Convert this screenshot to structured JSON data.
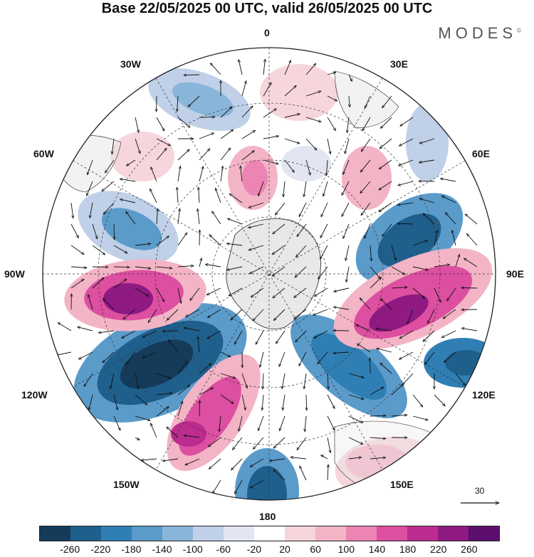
{
  "title": "Base 22/05/2025 00 UTC, valid 26/05/2025 00 UTC",
  "brand": "MODES",
  "brand_mark": "©",
  "lon_labels": {
    "top": "0",
    "top_right": "30E",
    "right_upper": "60E",
    "right": "90E",
    "right_lower": "120E",
    "bottom_right": "150E",
    "bottom": "180",
    "bottom_left": "150W",
    "left_lower": "120W",
    "left": "90W",
    "left_upper": "60W",
    "top_left": "30W"
  },
  "vector_reference": "30",
  "colorbar": {
    "ticks": [
      "-260",
      "-220",
      "-180",
      "-140",
      "-100",
      "-60",
      "-20",
      "20",
      "60",
      "100",
      "140",
      "180",
      "220",
      "260"
    ],
    "colors": [
      "#143c5a",
      "#1f5f8c",
      "#2f7fb5",
      "#5a9bca",
      "#8ab5da",
      "#bfd0e8",
      "#e3e6f2",
      "#ffffff",
      "#f6d6dc",
      "#f3b4c6",
      "#ec85b3",
      "#dd4fa0",
      "#bb2c8e",
      "#8e1a82",
      "#5c0f6e"
    ]
  },
  "colors": {
    "land": "#e8e8e8",
    "outline": "#222222",
    "grid": "#333333"
  }
}
